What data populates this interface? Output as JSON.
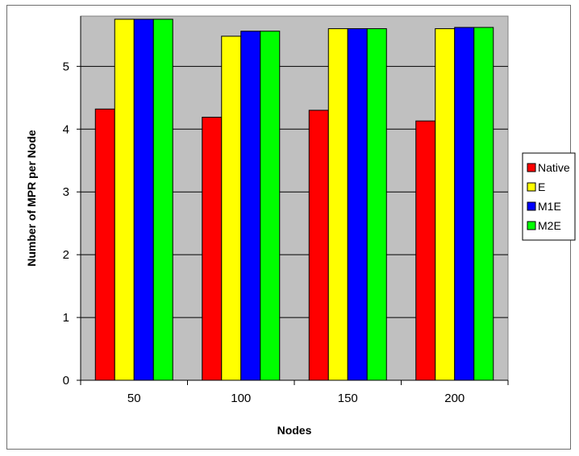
{
  "chart_data": {
    "type": "bar",
    "title": "",
    "xlabel": "Nodes",
    "ylabel": "Number of MPR per Node",
    "categories": [
      "50",
      "100",
      "150",
      "200"
    ],
    "ylim": [
      0,
      5.8
    ],
    "yticks": [
      0,
      1,
      2,
      3,
      4,
      5
    ],
    "grid": true,
    "legend_position": "right",
    "plot_background": "#c0c0c0",
    "series": [
      {
        "name": "Native",
        "color": "#ff0000",
        "values": [
          4.32,
          4.19,
          4.3,
          4.13
        ]
      },
      {
        "name": "E",
        "color": "#ffff00",
        "values": [
          5.75,
          5.48,
          5.6,
          5.6
        ]
      },
      {
        "name": "M1E",
        "color": "#0000ff",
        "values": [
          5.75,
          5.56,
          5.6,
          5.62
        ]
      },
      {
        "name": "M2E",
        "color": "#00ff00",
        "values": [
          5.75,
          5.56,
          5.6,
          5.62
        ]
      }
    ]
  }
}
